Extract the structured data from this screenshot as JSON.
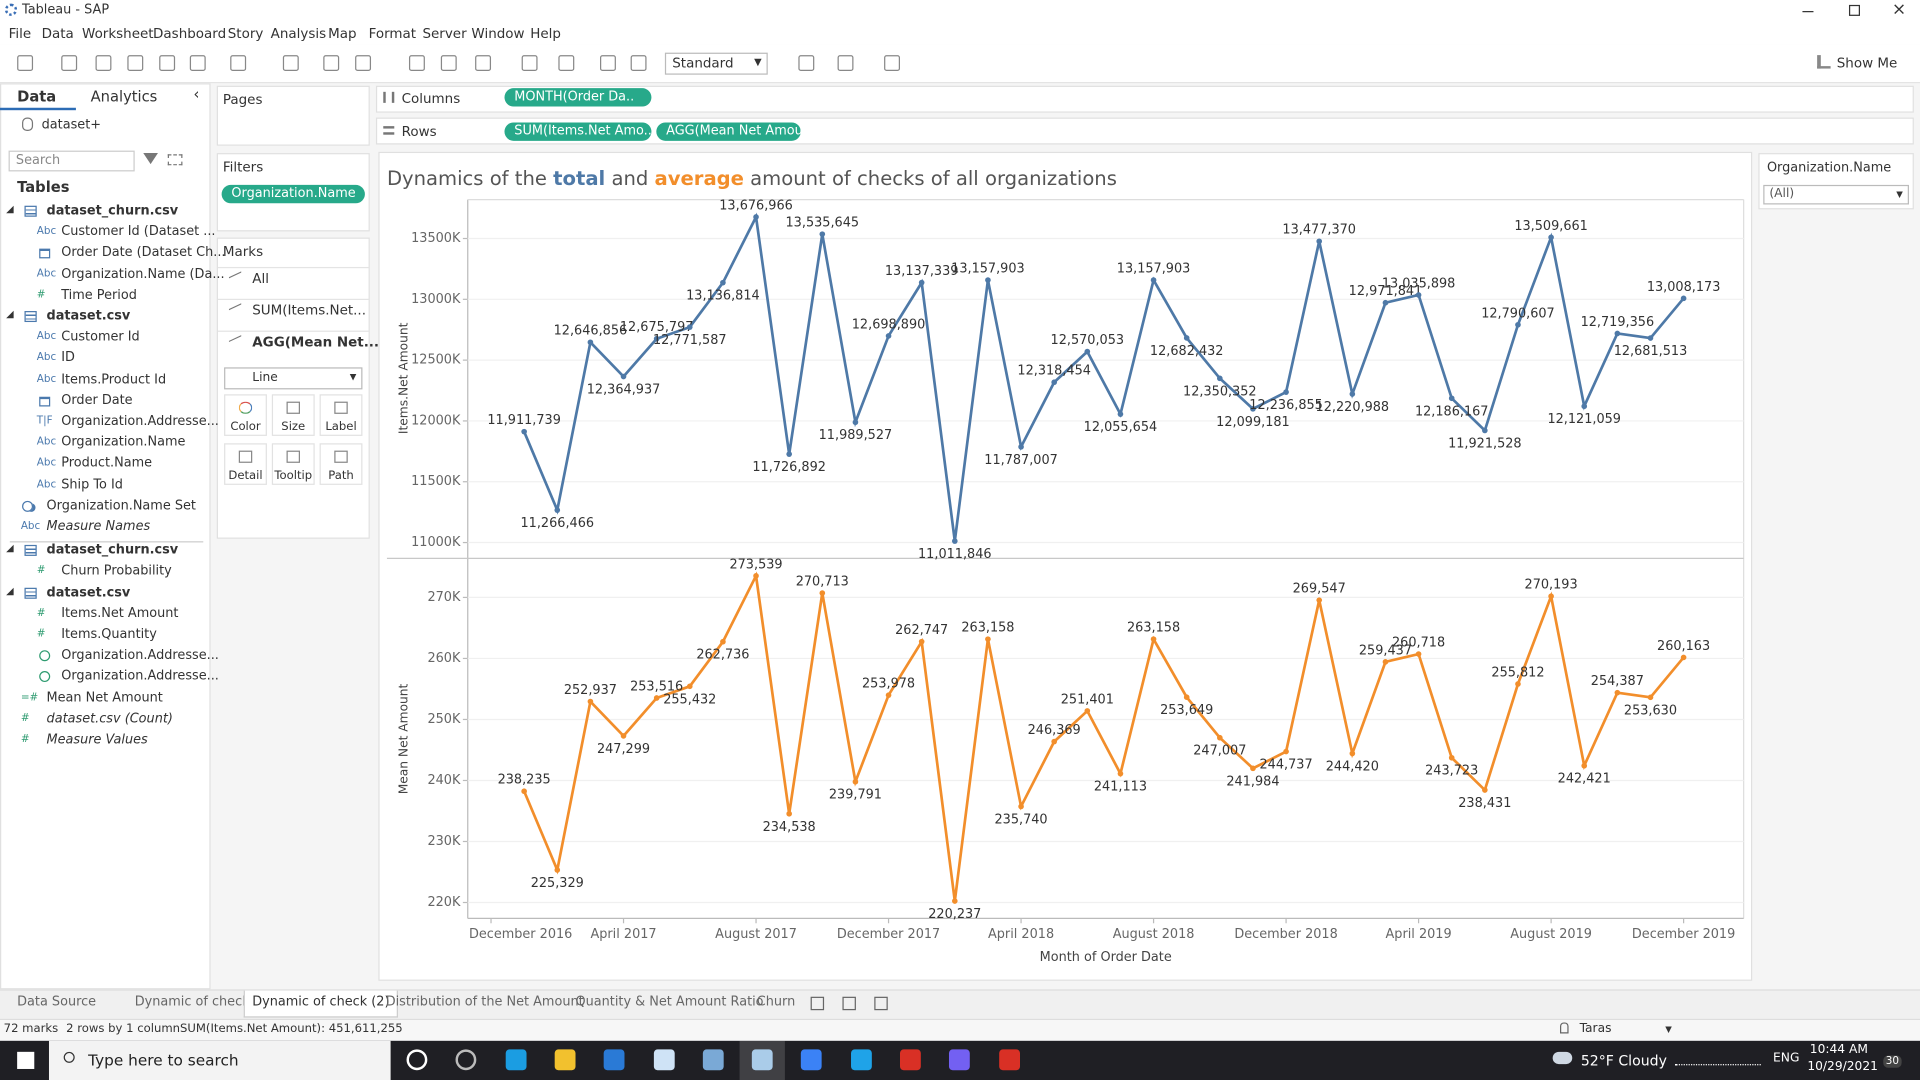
{
  "ui": {
    "window": {
      "title": "Tableau - SAP"
    },
    "menu": [
      "File",
      "Data",
      "Worksheet",
      "Dashboard",
      "Story",
      "Analysis",
      "Map",
      "Format",
      "Server",
      "Window",
      "Help"
    ],
    "toolbar": {
      "fit": "Standard",
      "show_me": "Show Me"
    },
    "data_pane": {
      "tabs": [
        "Data",
        "Analytics"
      ],
      "source": "dataset+",
      "search": "Search",
      "tables_heading": "Tables",
      "groups": [
        {
          "tables": [
            {
              "name": "dataset_churn.csv",
              "fields": [
                {
                  "name": "Customer Id (Dataset ...",
                  "icon": "Abc"
                },
                {
                  "name": "Order Date (Dataset Ch...",
                  "icon": "date"
                },
                {
                  "name": "Organization.Name (Da...",
                  "icon": "Abc"
                },
                {
                  "name": "Time Period",
                  "icon": "#"
                }
              ]
            },
            {
              "name": "dataset.csv",
              "fields": [
                {
                  "name": "Customer Id",
                  "icon": "Abc"
                },
                {
                  "name": "ID",
                  "icon": "Abc"
                },
                {
                  "name": "Items.Product Id",
                  "icon": "Abc"
                },
                {
                  "name": "Order Date",
                  "icon": "date"
                },
                {
                  "name": "Organization.Addresse...",
                  "icon": "T|F"
                },
                {
                  "name": "Organization.Name",
                  "icon": "Abc"
                },
                {
                  "name": "Product.Name",
                  "icon": "Abc"
                },
                {
                  "name": "Ship To Id",
                  "icon": "Abc"
                }
              ]
            }
          ],
          "extra": [
            {
              "name": "Organization.Name Set",
              "icon": "set"
            },
            {
              "name": "Measure Names",
              "icon": "Abc",
              "italic": true
            }
          ]
        },
        {
          "tables": [
            {
              "name": "dataset_churn.csv",
              "fields": [
                {
                  "name": "Churn Probability",
                  "icon": "#"
                }
              ]
            },
            {
              "name": "dataset.csv",
              "fields": [
                {
                  "name": "Items.Net Amount",
                  "icon": "#"
                },
                {
                  "name": "Items.Quantity",
                  "icon": "#"
                },
                {
                  "name": "Organization.Addresse...",
                  "icon": "geo"
                },
                {
                  "name": "Organization.Addresse...",
                  "icon": "geo"
                }
              ]
            }
          ],
          "extra": [
            {
              "name": "Mean Net Amount",
              "icon": "=#"
            },
            {
              "name": "dataset.csv (Count)",
              "icon": "#",
              "italic": true
            },
            {
              "name": "Measure Values",
              "icon": "#",
              "italic": true
            }
          ]
        }
      ]
    },
    "shelves": {
      "pages": "Pages",
      "columns": {
        "label": "Columns",
        "pills": [
          "MONTH(Order Da.."
        ]
      },
      "rows": {
        "label": "Rows",
        "pills": [
          "SUM(Items.Net Amo..",
          "AGG(Mean Net Amou.."
        ]
      },
      "filters": {
        "label": "Filters",
        "pills": [
          "Organization.Name"
        ]
      }
    },
    "marks": {
      "label": "Marks",
      "cards": [
        "All",
        "SUM(Items.Net...",
        "AGG(Mean Net..."
      ],
      "active": 2,
      "mark_type": "Line",
      "buttons": [
        "Color",
        "Size",
        "Label",
        "Detail",
        "Tooltip",
        "Path"
      ]
    },
    "filter_card": {
      "title": "Organization.Name",
      "value": "(All)"
    },
    "tabs": {
      "items": [
        "Data Source",
        "Dynamic of check",
        "Dynamic of check (2)",
        "Distribution of the Net Amount",
        "Quantity & Net Amount Ratio",
        "Churn"
      ],
      "active": 2
    },
    "status": {
      "marks": "72 marks",
      "dims": "2 rows by 1 column",
      "sum": "SUM(Items.Net Amount): 451,611,255",
      "user": "Taras"
    },
    "taskbar": {
      "search": "Type here to search",
      "weather": "52°F  Cloudy",
      "lang": "ENG",
      "time": "10:44 AM",
      "date": "10/29/2021",
      "badge": "30"
    }
  },
  "chart_data": [
    {
      "type": "line",
      "title": [
        {
          "text": "Dynamics of the "
        },
        {
          "text": "total",
          "color": "#4e79a7"
        },
        {
          "text": " and "
        },
        {
          "text": "average",
          "color": "#f28e2b"
        },
        {
          "text": " amount of checks of all organizations"
        }
      ],
      "y_label": "Items.Net Amount",
      "x": [
        "2017-01",
        "2017-02",
        "2017-03",
        "2017-04",
        "2017-05",
        "2017-06",
        "2017-07",
        "2017-08",
        "2017-09",
        "2017-10",
        "2017-11",
        "2017-12",
        "2018-01",
        "2018-02",
        "2018-03",
        "2018-04",
        "2018-05",
        "2018-06",
        "2018-07",
        "2018-08",
        "2018-09",
        "2018-10",
        "2018-11",
        "2018-12",
        "2019-01",
        "2019-02",
        "2019-03",
        "2019-04",
        "2019-05",
        "2019-06",
        "2019-07",
        "2019-08",
        "2019-09",
        "2019-10",
        "2019-11",
        "2019-12"
      ],
      "xlim": [
        "2016-12",
        "2020-01"
      ],
      "values": [
        11911739,
        11266466,
        12646856,
        12364937,
        12675797,
        12771587,
        13136814,
        13676966,
        11726892,
        13535645,
        11989527,
        12698890,
        13137339,
        11011846,
        13157903,
        11787007,
        12318454,
        12570053,
        12055654,
        13157903,
        12682432,
        12350352,
        12099181,
        12236855,
        13477370,
        12220988,
        12971841,
        13035898,
        12186167,
        11921528,
        12790607,
        13509661,
        12121059,
        12719356,
        12681513,
        13008173
      ],
      "value_labels": [
        "11,911,739",
        "11,266,466",
        "12,646,856",
        "12,364,937",
        "12,675,797",
        "12,771,587",
        "13,136,814",
        "13,676,966",
        "11,726,892",
        "13,535,645",
        "11,989,527",
        "12,698,890",
        "13,137,339",
        "11,011,846",
        "13,157,903",
        "11,787,007",
        "12,318,454",
        "12,570,053",
        "12,055,654",
        "13,157,903",
        "12,682,432",
        "12,350,352",
        "12,099,181",
        "12,236,855",
        "13,477,370",
        "12,220,988",
        "12,971,841",
        "13,035,898",
        "12,186,167",
        "11,921,528",
        "12,790,607",
        "13,509,661",
        "12,121,059",
        "12,719,356",
        "12,681,513",
        "13,008,173"
      ],
      "color": "#4e79a7",
      "ylim": [
        10880000,
        13820000
      ],
      "yticks": [
        {
          "value": 11000000,
          "label": "11000K"
        },
        {
          "value": 11500000,
          "label": "11500K"
        },
        {
          "value": 12000000,
          "label": "12000K"
        },
        {
          "value": 12500000,
          "label": "12500K"
        },
        {
          "value": 13000000,
          "label": "13000K"
        },
        {
          "value": 13500000,
          "label": "13500K"
        }
      ],
      "grid": true
    },
    {
      "type": "line",
      "y_label": "Mean Net Amount",
      "x_label": "Month of Order Date",
      "x": [
        "2017-01",
        "2017-02",
        "2017-03",
        "2017-04",
        "2017-05",
        "2017-06",
        "2017-07",
        "2017-08",
        "2017-09",
        "2017-10",
        "2017-11",
        "2017-12",
        "2018-01",
        "2018-02",
        "2018-03",
        "2018-04",
        "2018-05",
        "2018-06",
        "2018-07",
        "2018-08",
        "2018-09",
        "2018-10",
        "2018-11",
        "2018-12",
        "2019-01",
        "2019-02",
        "2019-03",
        "2019-04",
        "2019-05",
        "2019-06",
        "2019-07",
        "2019-08",
        "2019-09",
        "2019-10",
        "2019-11",
        "2019-12"
      ],
      "xlim": [
        "2016-12",
        "2020-01"
      ],
      "xticks": [
        {
          "value": "2016-12",
          "label": "December 2016"
        },
        {
          "value": "2017-04",
          "label": "April 2017"
        },
        {
          "value": "2017-08",
          "label": "August 2017"
        },
        {
          "value": "2017-12",
          "label": "December 2017"
        },
        {
          "value": "2018-04",
          "label": "April 2018"
        },
        {
          "value": "2018-08",
          "label": "August 2018"
        },
        {
          "value": "2018-12",
          "label": "December 2018"
        },
        {
          "value": "2019-04",
          "label": "April 2019"
        },
        {
          "value": "2019-08",
          "label": "August 2019"
        },
        {
          "value": "2019-12",
          "label": "December 2019"
        }
      ],
      "values": [
        238235,
        225329,
        252937,
        247299,
        253516,
        255432,
        262736,
        273539,
        234538,
        270713,
        239791,
        253978,
        262747,
        220237,
        263158,
        235740,
        246369,
        251401,
        241113,
        263158,
        253649,
        247007,
        241984,
        244737,
        269547,
        244420,
        259437,
        260718,
        243723,
        238431,
        255812,
        270193,
        242421,
        254387,
        253630,
        260163
      ],
      "value_labels": [
        "238,235",
        "225,329",
        "252,937",
        "247,299",
        "253,516",
        "255,432",
        "262,736",
        "273,539",
        "234,538",
        "270,713",
        "239,791",
        "253,978",
        "262,747",
        "220,237",
        "263,158",
        "235,740",
        "246,369",
        "251,401",
        "241,113",
        "263,158",
        "253,649",
        "247,007",
        "241,984",
        "244,737",
        "269,547",
        "244,420",
        "259,437",
        "260,718",
        "243,723",
        "238,431",
        "255,812",
        "270,193",
        "242,421",
        "254,387",
        "253,630",
        "260,163"
      ],
      "color": "#f28e2b",
      "ylim": [
        217400,
        276200
      ],
      "yticks": [
        {
          "value": 220000,
          "label": "220K"
        },
        {
          "value": 230000,
          "label": "230K"
        },
        {
          "value": 240000,
          "label": "240K"
        },
        {
          "value": 250000,
          "label": "250K"
        },
        {
          "value": 260000,
          "label": "260K"
        },
        {
          "value": 270000,
          "label": "270K"
        }
      ],
      "grid": true
    }
  ]
}
